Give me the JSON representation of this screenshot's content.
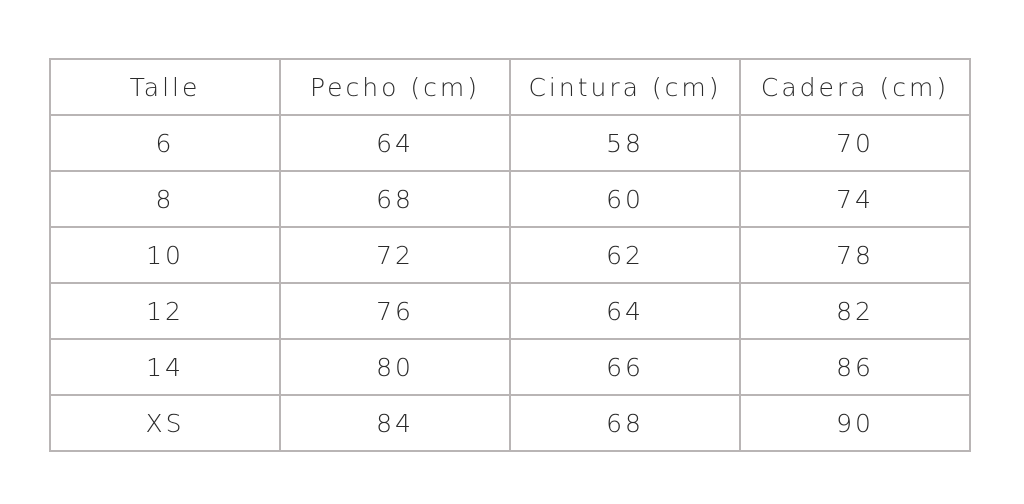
{
  "table": {
    "header": [
      "Talle",
      "Pecho (cm)",
      "Cintura (cm)",
      "Cadera (cm)"
    ],
    "rows": [
      [
        "6",
        "64",
        "58",
        "70"
      ],
      [
        "8",
        "68",
        "60",
        "74"
      ],
      [
        "10",
        "72",
        "62",
        "78"
      ],
      [
        "12",
        "76",
        "64",
        "82"
      ],
      [
        "14",
        "80",
        "66",
        "86"
      ],
      [
        "XS",
        "84",
        "68",
        "90"
      ]
    ]
  }
}
